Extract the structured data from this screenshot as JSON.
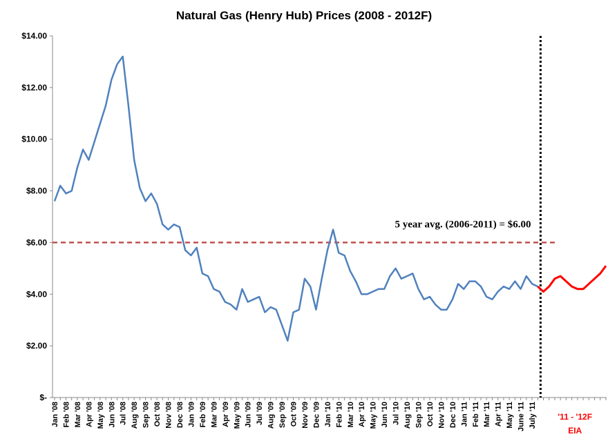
{
  "chart_data": {
    "type": "line",
    "title": "Natural Gas (Henry Hub) Prices (2008 - 2012F)",
    "categories": [
      "Jan '08",
      null,
      "Feb '08",
      null,
      "Mar '08",
      null,
      "Apr '08",
      null,
      "May '08",
      null,
      "Jun '08",
      null,
      "Jul '08",
      null,
      "Aug '08",
      null,
      "Sep '08",
      null,
      "Oct '08",
      null,
      "Nov '08",
      null,
      "Dec '08",
      null,
      "Jan '09",
      null,
      "Feb '09",
      null,
      "Mar '09",
      null,
      "Apr '09",
      null,
      "May '09",
      null,
      "Jun '09",
      null,
      "Jul '09",
      null,
      "Aug '09",
      null,
      "Sep '09",
      null,
      "Oct '09",
      null,
      "Nov '09",
      null,
      "Dec '09",
      null,
      "Jan '10",
      null,
      "Feb '10",
      null,
      "Mar '10",
      null,
      "Apr '10",
      null,
      "May '10",
      null,
      "Jun '10",
      null,
      "Jul '10",
      null,
      "Aug '10",
      null,
      "Sep '10",
      null,
      "Oct '10",
      null,
      "Nov '10",
      null,
      "Dec '10",
      null,
      "Jan '11",
      null,
      "Feb '11",
      null,
      "Mar '11",
      null,
      "Apr '11",
      null,
      "May '11",
      null,
      "June '11",
      null,
      "July '11",
      null,
      null,
      null,
      null,
      null,
      null,
      null,
      null,
      null,
      null,
      null,
      null,
      null
    ],
    "series": [
      {
        "color": "#4f81bd",
        "values": [
          7.6,
          8.2,
          7.9,
          8.0,
          8.9,
          9.6,
          9.2,
          9.9,
          10.6,
          11.3,
          12.3,
          12.9,
          13.2,
          11.3,
          9.2,
          8.1,
          7.6,
          7.9,
          7.5,
          6.7,
          6.5,
          6.7,
          6.6,
          5.7,
          5.5,
          5.8,
          4.8,
          4.7,
          4.2,
          4.1,
          3.7,
          3.6,
          3.4,
          4.2,
          3.7,
          3.8,
          3.9,
          3.3,
          3.5,
          3.4,
          2.8,
          2.2,
          3.3,
          3.4,
          4.6,
          4.3,
          3.4,
          4.6,
          5.7,
          6.5,
          5.6,
          5.5,
          4.9,
          4.5,
          4.0,
          4.0,
          4.1,
          4.2,
          4.2,
          4.7,
          5.0,
          4.6,
          4.7,
          4.8,
          4.2,
          3.8,
          3.9,
          3.6,
          3.4,
          3.4,
          3.8,
          4.4,
          4.2,
          4.5,
          4.5,
          4.3,
          3.9,
          3.8,
          4.1,
          4.3,
          4.2,
          4.5,
          4.2,
          4.7,
          4.4,
          4.3,
          null,
          null,
          null,
          null,
          null,
          null,
          null,
          null,
          null,
          null,
          null,
          null
        ]
      },
      {
        "color": "#ff0000",
        "values": [
          null,
          null,
          null,
          null,
          null,
          null,
          null,
          null,
          null,
          null,
          null,
          null,
          null,
          null,
          null,
          null,
          null,
          null,
          null,
          null,
          null,
          null,
          null,
          null,
          null,
          null,
          null,
          null,
          null,
          null,
          null,
          null,
          null,
          null,
          null,
          null,
          null,
          null,
          null,
          null,
          null,
          null,
          null,
          null,
          null,
          null,
          null,
          null,
          null,
          null,
          null,
          null,
          null,
          null,
          null,
          null,
          null,
          null,
          null,
          null,
          null,
          null,
          null,
          null,
          null,
          null,
          null,
          null,
          null,
          null,
          null,
          null,
          null,
          null,
          null,
          null,
          null,
          null,
          null,
          null,
          null,
          null,
          null,
          null,
          null,
          4.3,
          4.1,
          4.3,
          4.6,
          4.7,
          4.5,
          4.3,
          4.2,
          4.2,
          4.4,
          4.6,
          4.8,
          5.1
        ]
      }
    ],
    "forecast_label": [
      "'11 - '12F",
      "EIA"
    ],
    "reference_line": {
      "value": 6,
      "label": "5 year avg. (2006-2011) = $6.00",
      "color": "#c0504d"
    },
    "ylim": [
      0,
      14
    ],
    "yticks": [
      {
        "value": 0,
        "label": "$-"
      },
      {
        "value": 2,
        "label": "$2.00"
      },
      {
        "value": 4,
        "label": "$4.00"
      },
      {
        "value": 6,
        "label": "$6.00"
      },
      {
        "value": 8,
        "label": "$8.00"
      },
      {
        "value": 10,
        "label": "$10.00"
      },
      {
        "value": 12,
        "label": "$12.00"
      },
      {
        "value": 14,
        "label": "$14.00"
      }
    ]
  }
}
